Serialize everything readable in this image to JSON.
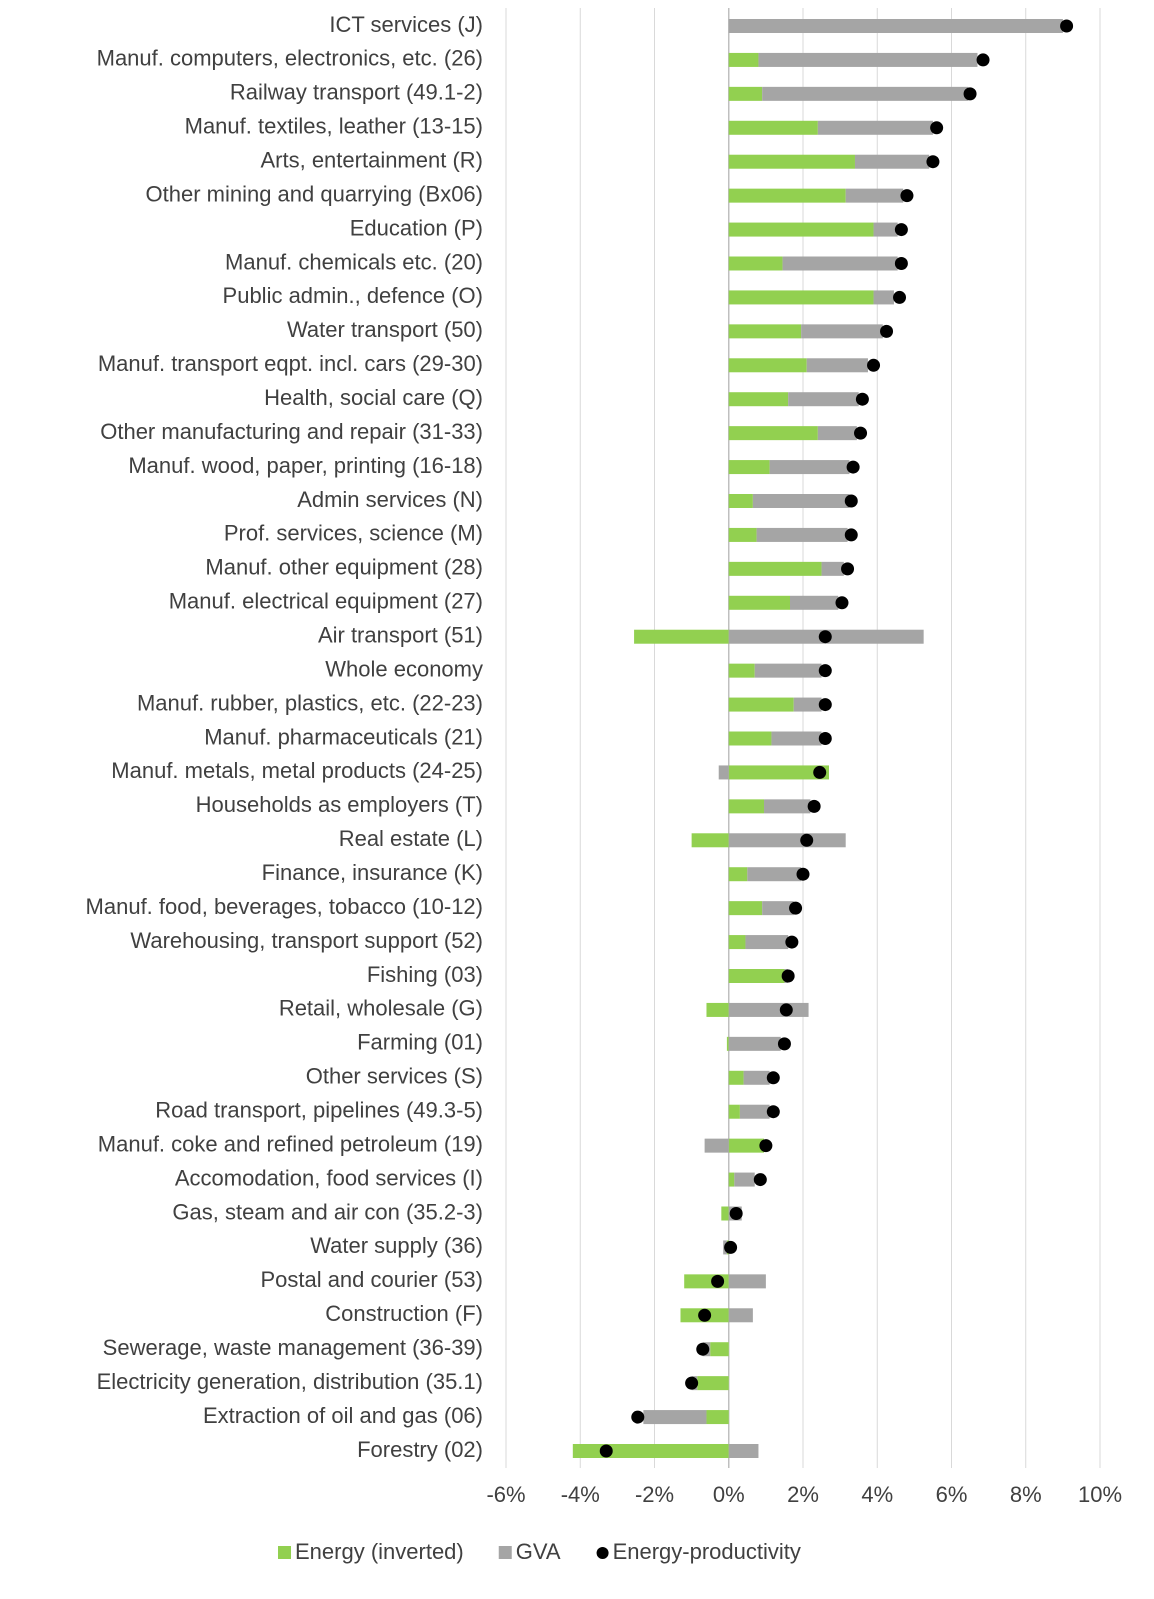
{
  "chart_data": {
    "type": "bar",
    "orientation": "horizontal",
    "stacked": true,
    "categories": [
      "ICT services (J)",
      "Manuf. computers, electronics, etc. (26)",
      "Railway transport (49.1-2)",
      "Manuf. textiles, leather (13-15)",
      "Arts, entertainment (R)",
      "Other mining and quarrying (Bx06)",
      "Education (P)",
      "Manuf. chemicals etc. (20)",
      "Public admin., defence (O)",
      "Water transport (50)",
      "Manuf. transport eqpt. incl. cars (29-30)",
      "Health, social care (Q)",
      "Other manufacturing and repair (31-33)",
      "Manuf. wood, paper, printing (16-18)",
      "Admin services (N)",
      "Prof. services, science (M)",
      "Manuf. other equipment (28)",
      "Manuf. electrical equipment (27)",
      "Air transport (51)",
      "Whole economy",
      "Manuf. rubber, plastics, etc. (22-23)",
      "Manuf. pharmaceuticals (21)",
      "Manuf. metals, metal products (24-25)",
      "Households as employers (T)",
      "Real estate (L)",
      "Finance, insurance (K)",
      "Manuf. food, beverages, tobacco (10-12)",
      "Warehousing, transport support (52)",
      "Fishing (03)",
      "Retail, wholesale (G)",
      "Farming (01)",
      "Other services (S)",
      "Road transport, pipelines (49.3-5)",
      "Manuf. coke and refined petroleum (19)",
      "Accomodation, food services (I)",
      "Gas, steam and air con (35.2-3)",
      "Water supply (36)",
      "Postal and courier (53)",
      "Construction (F)",
      "Sewerage, waste management (36-39)",
      "Electricity generation, distribution (35.1)",
      "Extraction of oil and gas (06)",
      "Forestry (02)"
    ],
    "series": [
      {
        "name": "Energy (inverted)",
        "color": "#92d050",
        "type": "bar",
        "values": [
          0,
          0.8,
          0.9,
          2.4,
          3.4,
          3.15,
          3.9,
          1.45,
          3.9,
          1.95,
          2.1,
          1.6,
          2.4,
          1.1,
          0.65,
          0.75,
          2.5,
          1.65,
          -2.55,
          0.7,
          1.75,
          1.15,
          2.7,
          0.95,
          -1.0,
          0.5,
          0.9,
          0.45,
          1.5,
          -0.6,
          -0.05,
          0.4,
          0.3,
          0.95,
          0.15,
          -0.2,
          -0.05,
          -1.2,
          -1.3,
          -0.5,
          -0.85,
          -0.6,
          -4.2
        ]
      },
      {
        "name": "GVA",
        "color": "#a5a5a5",
        "type": "bar",
        "values": [
          9.0,
          5.9,
          5.55,
          3.1,
          2.0,
          1.55,
          0.65,
          3.1,
          0.55,
          2.2,
          1.65,
          1.9,
          1.05,
          2.15,
          2.6,
          2.45,
          0.6,
          1.3,
          5.25,
          1.8,
          0.75,
          1.35,
          -0.27,
          1.25,
          3.15,
          1.45,
          0.85,
          1.15,
          0.1,
          2.15,
          1.4,
          0.7,
          0.8,
          -0.65,
          0.55,
          0.35,
          -0.1,
          1.0,
          0.65,
          -0.2,
          -0.15,
          -1.7,
          0.8
        ]
      },
      {
        "name": "Energy-productivity",
        "color": "#000000",
        "type": "scatter",
        "values": [
          9.1,
          6.85,
          6.5,
          5.6,
          5.5,
          4.8,
          4.65,
          4.65,
          4.6,
          4.25,
          3.9,
          3.6,
          3.55,
          3.35,
          3.3,
          3.3,
          3.2,
          3.05,
          2.6,
          2.6,
          2.6,
          2.6,
          2.45,
          2.3,
          2.1,
          2.0,
          1.8,
          1.7,
          1.6,
          1.55,
          1.5,
          1.2,
          1.2,
          1.0,
          0.85,
          0.2,
          0.05,
          -0.3,
          -0.65,
          -0.7,
          -1.0,
          -2.45,
          -3.3
        ]
      }
    ],
    "xlim": [
      -6,
      10
    ],
    "xticks": [
      {
        "value": -6,
        "label": "-6%"
      },
      {
        "value": -4,
        "label": "-4%"
      },
      {
        "value": -2,
        "label": "-2%"
      },
      {
        "value": 0,
        "label": "0%"
      },
      {
        "value": 2,
        "label": "2%"
      },
      {
        "value": 4,
        "label": "4%"
      },
      {
        "value": 6,
        "label": "6%"
      },
      {
        "value": 8,
        "label": "8%"
      },
      {
        "value": 10,
        "label": "10%"
      }
    ],
    "grid": true,
    "legend": "bottom"
  }
}
